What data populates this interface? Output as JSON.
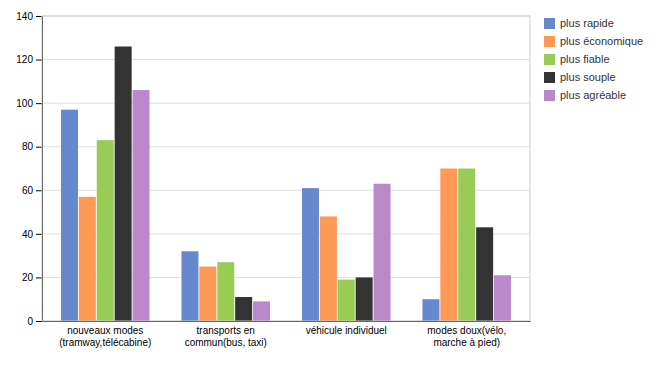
{
  "chart_data": {
    "type": "bar",
    "categories": [
      "nouveaux modes\n(tramway,télécabine)",
      "transports en\ncommun(bus, taxi)",
      "véhicule individuel",
      "modes doux(vélo,\nmarche à pied)"
    ],
    "series": [
      {
        "name": "plus rapide",
        "color": "#6688cc",
        "values": [
          97,
          32,
          61,
          10
        ]
      },
      {
        "name": "plus économique",
        "color": "#ff9955",
        "values": [
          57,
          25,
          48,
          70
        ]
      },
      {
        "name": "plus fiable",
        "color": "#99cc55",
        "values": [
          83,
          27,
          19,
          70
        ]
      },
      {
        "name": "plus souple",
        "color": "#333333",
        "values": [
          126,
          11,
          20,
          43
        ]
      },
      {
        "name": "plus agréable",
        "color": "#bb88cc",
        "values": [
          106,
          9,
          63,
          21
        ]
      }
    ],
    "ylim": [
      0,
      140
    ],
    "yticks": [
      0,
      20,
      40,
      60,
      80,
      100,
      120,
      140
    ],
    "grid": true,
    "legend": "upper right"
  }
}
